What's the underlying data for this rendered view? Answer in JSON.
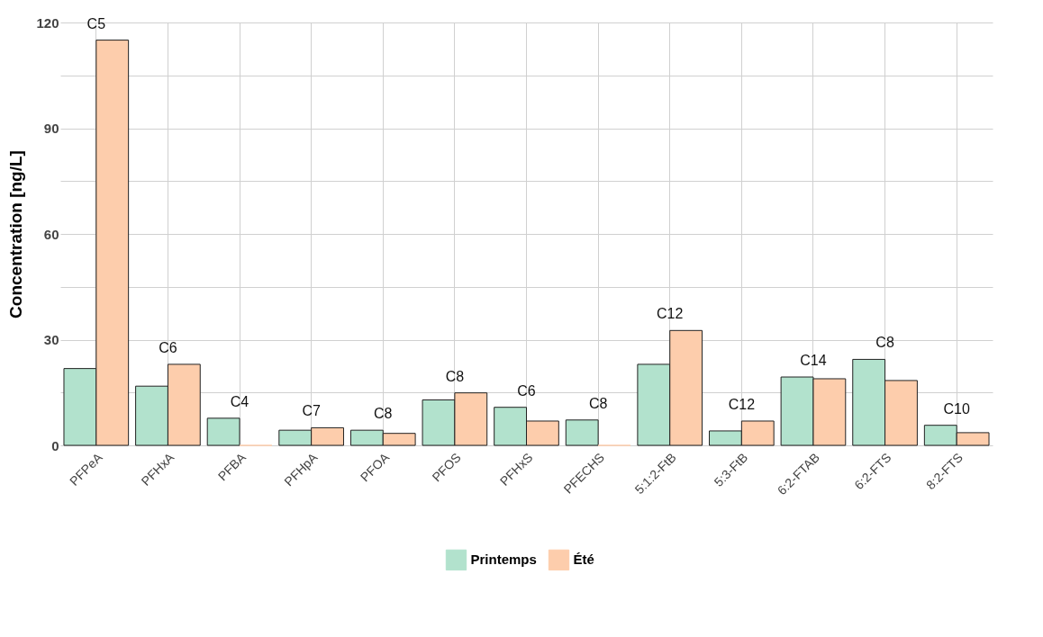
{
  "chart_data": {
    "type": "bar",
    "ylabel": "Concentration [ng/L]",
    "categories": [
      "PFPeA",
      "PFHxA",
      "PFBA",
      "PFHpA",
      "PFOA",
      "PFOS",
      "PFHxS",
      "PFECHS",
      "5:1:2-FtB",
      "5:3-FtB",
      "6:2-FTAB",
      "6:2-FTS",
      "8:2-FTS"
    ],
    "series": [
      {
        "name": "Printemps",
        "color": "#b2e2cd",
        "values": [
          21.8,
          16.8,
          7.7,
          4.3,
          4.3,
          12.9,
          10.8,
          7.2,
          23,
          4.1,
          19.4,
          24.4,
          5.7
        ]
      },
      {
        "name": "Été",
        "color": "#fdcdac",
        "values": [
          115,
          23,
          0,
          5,
          3.4,
          14.9,
          6.9,
          0,
          32.6,
          6.9,
          18.9,
          18.4,
          3.6
        ]
      }
    ],
    "ylim": [
      0,
      120
    ],
    "yticks": [
      0,
      {
        "value": 15,
        "label": null
      },
      30,
      {
        "value": 45,
        "label": null
      },
      60,
      {
        "value": 75,
        "label": null
      },
      90,
      {
        "value": 105,
        "label": null
      },
      120
    ],
    "annotations": [
      {
        "text": "C5",
        "x": "PFPeA",
        "y": 115
      },
      {
        "text": "C6",
        "x": "PFHxA",
        "y": 23
      },
      {
        "text": "C4",
        "x": "PFBA",
        "y": 7.7
      },
      {
        "text": "C7",
        "x": "PFHpA",
        "y": 5
      },
      {
        "text": "C8",
        "x": "PFOA",
        "y": 4.3
      },
      {
        "text": "C8",
        "x": "PFOS",
        "y": 14.9
      },
      {
        "text": "C6",
        "x": "PFHxS",
        "y": 10.8
      },
      {
        "text": "C8",
        "x": "PFECHS",
        "y": 7.2
      },
      {
        "text": "C12",
        "x": "5:1:2-FtB",
        "y": 32.6
      },
      {
        "text": "C12",
        "x": "5:3-FtB",
        "y": 6.9
      },
      {
        "text": "C14",
        "x": "6:2-FTAB",
        "y": 19.4
      },
      {
        "text": "C8",
        "x": "6:2-FTS",
        "y": 24.4
      },
      {
        "text": "C10",
        "x": "8:2-FTS",
        "y": 5.7
      }
    ],
    "grid": true,
    "legend": "bottom"
  }
}
